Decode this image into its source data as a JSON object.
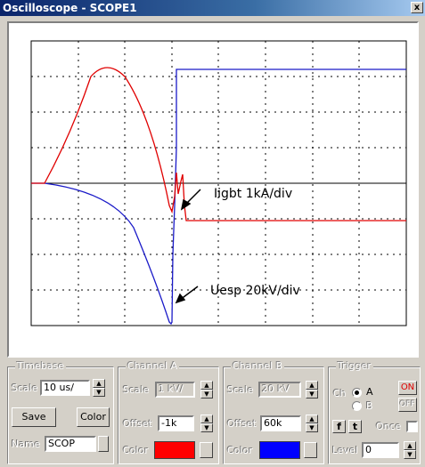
{
  "window": {
    "title": "Oscilloscope - SCOPE1",
    "close_glyph": "x"
  },
  "annotations": {
    "current_label": "Iigbt   1kA/div",
    "voltage_label": "Uesp   20kV/div"
  },
  "traces": {
    "channel_a_color": "#e00000",
    "channel_b_color": "#1a1ac8",
    "grid_color": "#000000",
    "axis_color": "#000000"
  },
  "timebase": {
    "title": "Timebase",
    "scale_label": "Scale",
    "scale_value": "10 us/",
    "save_label": "Save",
    "color_label": "Color",
    "name_label": "Name",
    "name_value": "SCOP"
  },
  "channel_a": {
    "title": "Channel A",
    "scale_label": "Scale",
    "scale_value": "1 kV/",
    "offset_label": "Offset",
    "offset_value": "-1k",
    "color_label": "Color",
    "color": "#ff0000"
  },
  "channel_b": {
    "title": "Channel B",
    "scale_label": "Scale",
    "scale_value": "20 kV",
    "offset_label": "Offset",
    "offset_value": "60k",
    "color_label": "Color",
    "color": "#0000ff"
  },
  "trigger": {
    "title": "Trigger",
    "ch_label": "Ch",
    "option_a": "A",
    "option_b": "B",
    "selected": "A",
    "on_label": "ON",
    "off_label": "OFF",
    "rising_glyph": "f",
    "falling_glyph": "t",
    "once_label": "Once",
    "level_label": "Level",
    "level_value": "0"
  }
}
